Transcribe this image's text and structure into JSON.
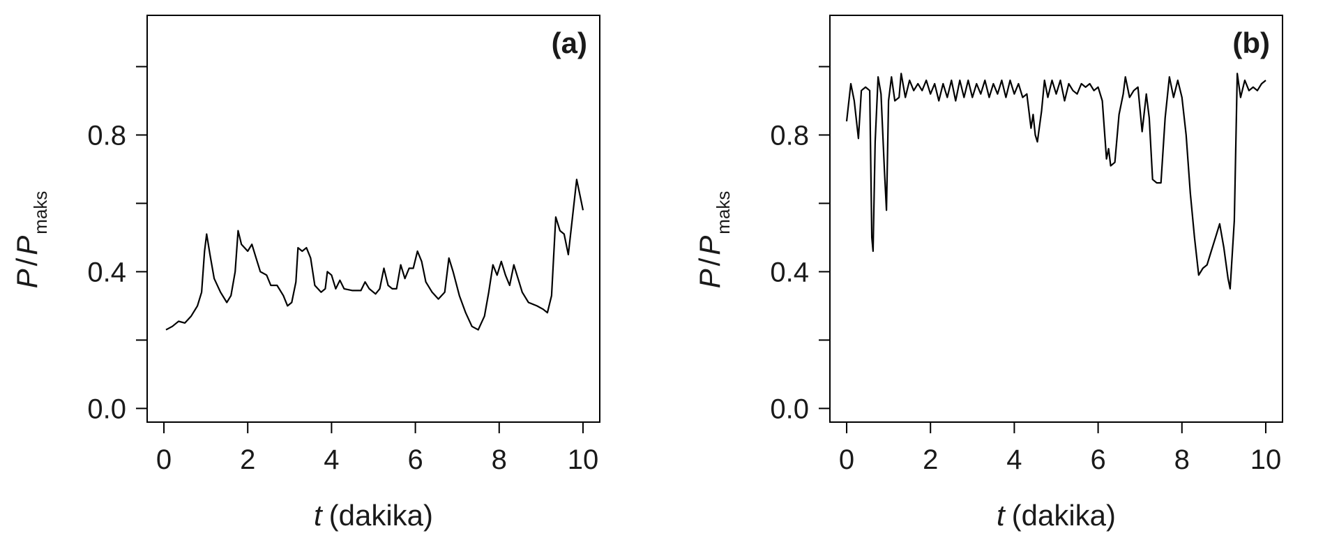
{
  "chart_data": [
    {
      "type": "line",
      "panel_label": "(a)",
      "color": "#000000",
      "xlabel": {
        "variable": "t",
        "unit": "(dakika)"
      },
      "ylabel": {
        "numerator": "P",
        "slash": "/",
        "denominator": "P",
        "subscript": "maks"
      },
      "xlim": [
        -0.4,
        10.4
      ],
      "xticks": [
        0,
        2,
        4,
        6,
        8,
        10
      ],
      "ylim": [
        -0.04,
        1.15
      ],
      "yticks": [
        {
          "value": 0,
          "label": "0.0"
        },
        0.4,
        0.8
      ],
      "yminorticks": [
        0.2,
        0.6,
        1.0
      ],
      "x": [
        0.05,
        0.2,
        0.35,
        0.5,
        0.65,
        0.8,
        0.9,
        0.97,
        1.02,
        1.1,
        1.2,
        1.35,
        1.5,
        1.6,
        1.7,
        1.77,
        1.85,
        2.0,
        2.1,
        2.2,
        2.3,
        2.45,
        2.55,
        2.7,
        2.85,
        2.95,
        3.05,
        3.15,
        3.2,
        3.3,
        3.4,
        3.5,
        3.6,
        3.75,
        3.85,
        3.9,
        4.0,
        4.1,
        4.2,
        4.3,
        4.5,
        4.7,
        4.8,
        4.9,
        5.05,
        5.15,
        5.25,
        5.35,
        5.45,
        5.55,
        5.65,
        5.75,
        5.85,
        5.95,
        6.05,
        6.15,
        6.25,
        6.4,
        6.55,
        6.7,
        6.8,
        6.9,
        7.05,
        7.2,
        7.35,
        7.5,
        7.65,
        7.75,
        7.85,
        7.95,
        8.05,
        8.15,
        8.25,
        8.35,
        8.45,
        8.55,
        8.7,
        8.9,
        9.05,
        9.15,
        9.25,
        9.35,
        9.45,
        9.55,
        9.65,
        9.75,
        9.85,
        9.95,
        10.0
      ],
      "values": [
        0.23,
        0.24,
        0.255,
        0.25,
        0.27,
        0.3,
        0.34,
        0.46,
        0.51,
        0.45,
        0.38,
        0.34,
        0.31,
        0.33,
        0.4,
        0.52,
        0.48,
        0.46,
        0.48,
        0.44,
        0.4,
        0.39,
        0.36,
        0.36,
        0.33,
        0.3,
        0.31,
        0.37,
        0.47,
        0.46,
        0.47,
        0.44,
        0.36,
        0.34,
        0.35,
        0.4,
        0.39,
        0.35,
        0.375,
        0.35,
        0.345,
        0.345,
        0.37,
        0.35,
        0.335,
        0.35,
        0.41,
        0.36,
        0.35,
        0.35,
        0.42,
        0.38,
        0.41,
        0.41,
        0.46,
        0.43,
        0.37,
        0.34,
        0.32,
        0.34,
        0.44,
        0.4,
        0.33,
        0.28,
        0.24,
        0.23,
        0.27,
        0.34,
        0.42,
        0.39,
        0.43,
        0.39,
        0.36,
        0.42,
        0.38,
        0.34,
        0.31,
        0.3,
        0.29,
        0.28,
        0.33,
        0.56,
        0.52,
        0.51,
        0.45,
        0.56,
        0.67,
        0.61,
        0.58
      ]
    },
    {
      "type": "line",
      "panel_label": "(b)",
      "color": "#000000",
      "xlabel": {
        "variable": "t",
        "unit": "(dakika)"
      },
      "ylabel": {
        "numerator": "P",
        "slash": "/",
        "denominator": "P",
        "subscript": "maks"
      },
      "xlim": [
        -0.4,
        10.4
      ],
      "xticks": [
        0,
        2,
        4,
        6,
        8,
        10
      ],
      "ylim": [
        -0.04,
        1.15
      ],
      "yticks": [
        {
          "value": 0,
          "label": "0.0"
        },
        0.4,
        0.8
      ],
      "yminorticks": [
        0.2,
        0.6,
        1.0
      ],
      "x": [
        0.0,
        0.1,
        0.18,
        0.28,
        0.35,
        0.45,
        0.55,
        0.6,
        0.63,
        0.68,
        0.75,
        0.82,
        0.9,
        0.95,
        1.0,
        1.07,
        1.15,
        1.25,
        1.3,
        1.4,
        1.5,
        1.6,
        1.7,
        1.8,
        1.9,
        2.0,
        2.1,
        2.2,
        2.3,
        2.4,
        2.5,
        2.6,
        2.7,
        2.8,
        2.9,
        3.0,
        3.1,
        3.2,
        3.3,
        3.4,
        3.5,
        3.6,
        3.7,
        3.8,
        3.9,
        4.0,
        4.1,
        4.2,
        4.3,
        4.4,
        4.45,
        4.5,
        4.55,
        4.65,
        4.72,
        4.8,
        4.9,
        5.0,
        5.1,
        5.2,
        5.3,
        5.4,
        5.5,
        5.6,
        5.7,
        5.8,
        5.9,
        6.0,
        6.1,
        6.2,
        6.25,
        6.3,
        6.4,
        6.5,
        6.6,
        6.65,
        6.75,
        6.85,
        6.95,
        7.05,
        7.15,
        7.22,
        7.3,
        7.4,
        7.5,
        7.6,
        7.7,
        7.8,
        7.9,
        8.0,
        8.1,
        8.2,
        8.3,
        8.4,
        8.5,
        8.6,
        8.7,
        8.8,
        8.9,
        9.0,
        9.1,
        9.15,
        9.25,
        9.32,
        9.4,
        9.5,
        9.6,
        9.7,
        9.8,
        9.9,
        10.0
      ],
      "values": [
        0.84,
        0.95,
        0.9,
        0.79,
        0.93,
        0.94,
        0.93,
        0.5,
        0.46,
        0.78,
        0.97,
        0.92,
        0.7,
        0.58,
        0.9,
        0.97,
        0.9,
        0.91,
        0.98,
        0.91,
        0.96,
        0.93,
        0.95,
        0.93,
        0.96,
        0.92,
        0.95,
        0.9,
        0.95,
        0.91,
        0.96,
        0.9,
        0.96,
        0.91,
        0.96,
        0.91,
        0.95,
        0.92,
        0.96,
        0.91,
        0.95,
        0.92,
        0.96,
        0.91,
        0.96,
        0.92,
        0.95,
        0.91,
        0.92,
        0.82,
        0.86,
        0.8,
        0.78,
        0.87,
        0.96,
        0.91,
        0.96,
        0.92,
        0.96,
        0.9,
        0.95,
        0.93,
        0.92,
        0.95,
        0.94,
        0.95,
        0.93,
        0.94,
        0.9,
        0.73,
        0.76,
        0.71,
        0.72,
        0.86,
        0.92,
        0.97,
        0.91,
        0.93,
        0.94,
        0.81,
        0.92,
        0.85,
        0.67,
        0.66,
        0.66,
        0.85,
        0.97,
        0.91,
        0.96,
        0.91,
        0.8,
        0.63,
        0.5,
        0.39,
        0.41,
        0.42,
        0.46,
        0.5,
        0.54,
        0.47,
        0.38,
        0.35,
        0.55,
        0.98,
        0.91,
        0.96,
        0.93,
        0.94,
        0.93,
        0.95,
        0.96
      ]
    }
  ]
}
